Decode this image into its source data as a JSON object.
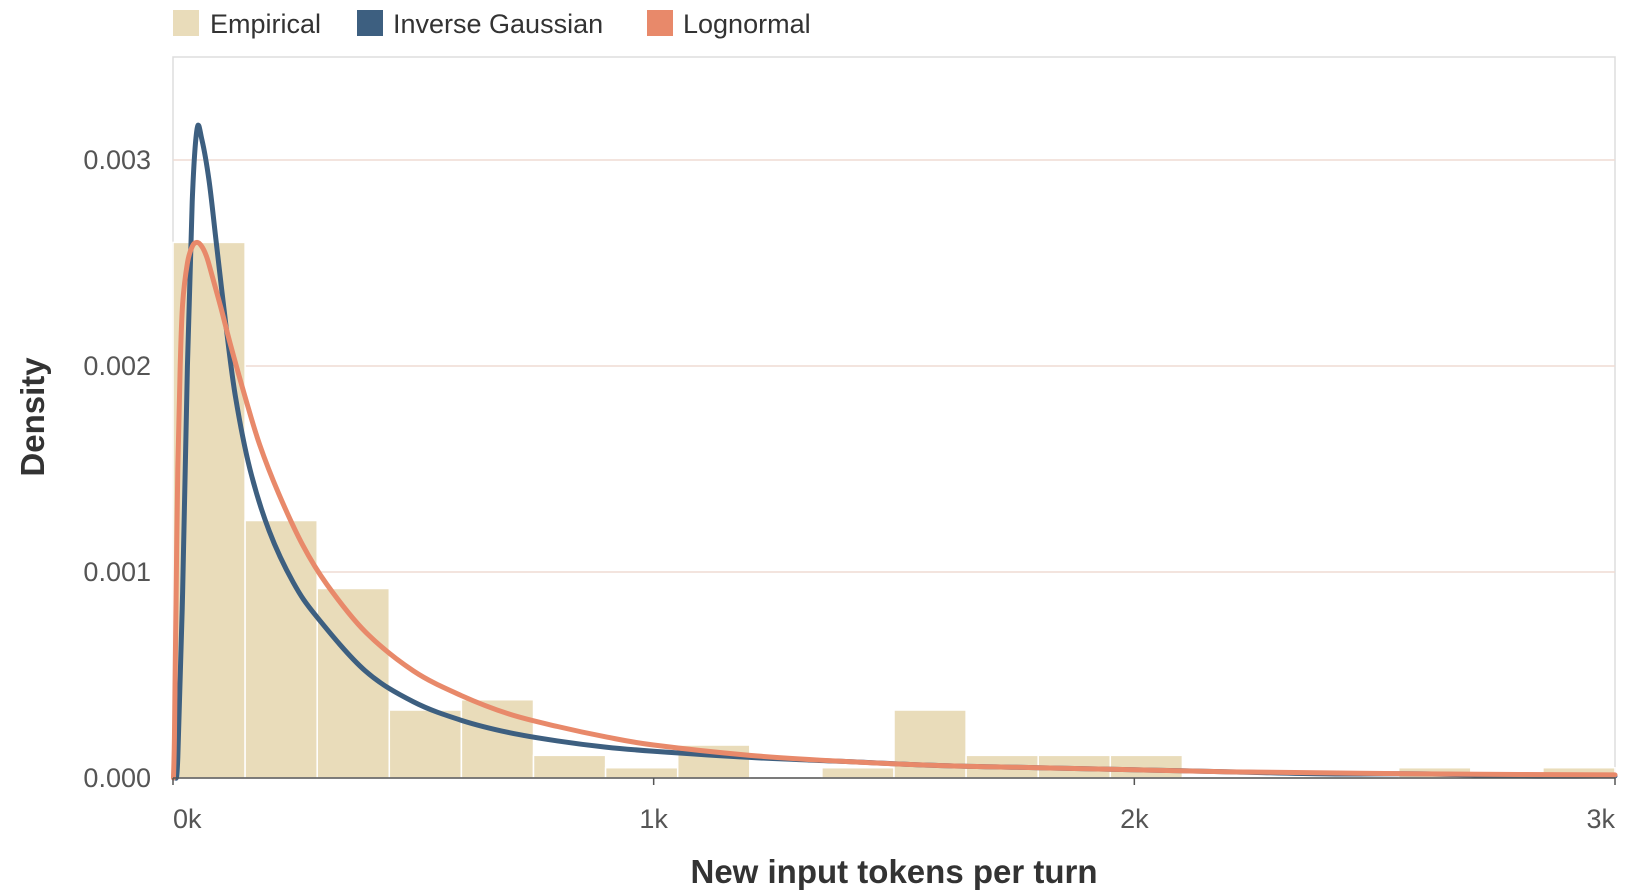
{
  "chart_data": {
    "type": "bar",
    "xlabel": "New input tokens per turn",
    "ylabel": "Density",
    "xlim": [
      0,
      3000
    ],
    "ylim": [
      0,
      0.0035
    ],
    "x_ticks": [
      {
        "value": 0,
        "label": "0k"
      },
      {
        "value": 1000,
        "label": "1k"
      },
      {
        "value": 2000,
        "label": "2k"
      },
      {
        "value": 3000,
        "label": "3k"
      }
    ],
    "y_ticks": [
      {
        "value": 0,
        "label": "0.000"
      },
      {
        "value": 0.001,
        "label": "0.001"
      },
      {
        "value": 0.002,
        "label": "0.002"
      },
      {
        "value": 0.003,
        "label": "0.003"
      }
    ],
    "grid": "horizontal",
    "legend_position": "top-left",
    "histogram": {
      "name": "Empirical",
      "color": "#e9dcba",
      "bin_width": 150,
      "bin_starts": [
        0,
        150,
        300,
        450,
        600,
        750,
        900,
        1050,
        1200,
        1350,
        1500,
        1650,
        1800,
        1950,
        2100,
        2250,
        2400,
        2550,
        2700,
        2850
      ],
      "values": [
        0.0026,
        0.00125,
        0.00092,
        0.00033,
        0.00038,
        0.00011,
        5e-05,
        0.00016,
        0.0,
        5e-05,
        0.00033,
        0.00011,
        0.00011,
        0.00011,
        0.0,
        0.0,
        0.0,
        5e-05,
        0.0,
        5e-05
      ]
    },
    "series": [
      {
        "name": "Inverse Gaussian",
        "color": "#3d5f80",
        "x": [
          5,
          10,
          20,
          30,
          40,
          50,
          60,
          75,
          90,
          110,
          130,
          160,
          200,
          250,
          300,
          400,
          500,
          600,
          700,
          800,
          900,
          1000,
          1200,
          1400,
          1600,
          1800,
          2000,
          2200,
          2400,
          2600,
          2800,
          3000
        ],
        "y": [
          0.0,
          0.0001,
          0.0009,
          0.002,
          0.0028,
          0.00315,
          0.0031,
          0.0029,
          0.0026,
          0.0022,
          0.00185,
          0.0015,
          0.0012,
          0.00095,
          0.00078,
          0.00052,
          0.00037,
          0.00028,
          0.00022,
          0.00018,
          0.00015,
          0.00013,
          0.0001,
          8e-05,
          6e-05,
          5e-05,
          4e-05,
          3e-05,
          2e-05,
          2e-05,
          1e-05,
          1e-05
        ]
      },
      {
        "name": "Lognormal",
        "color": "#e8896a",
        "x": [
          1,
          3,
          6,
          10,
          15,
          20,
          30,
          40,
          50,
          60,
          70,
          80,
          100,
          120,
          150,
          180,
          220,
          270,
          320,
          400,
          500,
          600,
          700,
          800,
          900,
          1000,
          1200,
          1400,
          1600,
          1800,
          2000,
          2200,
          2400,
          2600,
          2800,
          3000
        ],
        "y": [
          0.0,
          0.0002,
          0.0008,
          0.0015,
          0.002,
          0.0023,
          0.0025,
          0.00258,
          0.0026,
          0.00258,
          0.00253,
          0.00245,
          0.00228,
          0.0021,
          0.00185,
          0.00162,
          0.00138,
          0.00113,
          0.00094,
          0.00071,
          0.00052,
          0.0004,
          0.00031,
          0.00025,
          0.0002,
          0.00016,
          0.00011,
          8e-05,
          6e-05,
          5e-05,
          4e-05,
          3e-05,
          2.5e-05,
          2e-05,
          1.7e-05,
          1.5e-05
        ]
      }
    ]
  }
}
